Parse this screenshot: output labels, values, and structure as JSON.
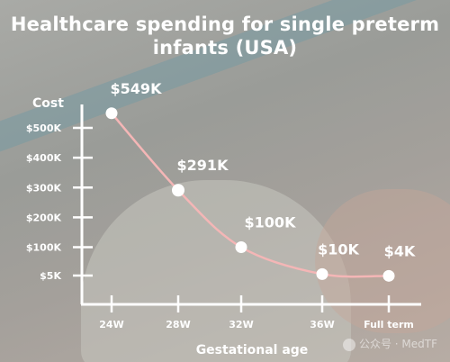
{
  "title": "Healthcare spending for single preterm infants (USA)",
  "chart_data": {
    "type": "line",
    "title": "Healthcare spending for single preterm infants (USA)",
    "xlabel": "Gestational age",
    "ylabel": "Cost",
    "categories": [
      "24W",
      "28W",
      "32W",
      "36W",
      "Full term"
    ],
    "y_ticks": [
      {
        "label": "$5K",
        "value": 5
      },
      {
        "label": "$100K",
        "value": 100
      },
      {
        "label": "$200K",
        "value": 200
      },
      {
        "label": "$300K",
        "value": 300
      },
      {
        "label": "$400K",
        "value": 400
      },
      {
        "label": "$500K",
        "value": 500
      }
    ],
    "ylim": [
      -70,
      590
    ],
    "series": [
      {
        "values": [
          549,
          291,
          100,
          10,
          4
        ],
        "data_labels": [
          "$549K",
          "$291K",
          "$100K",
          "$10K",
          "$4K"
        ]
      }
    ],
    "line_color": "#f4b6b6",
    "axis_color": "#ffffff"
  },
  "watermark": "公众号 · MedTF"
}
